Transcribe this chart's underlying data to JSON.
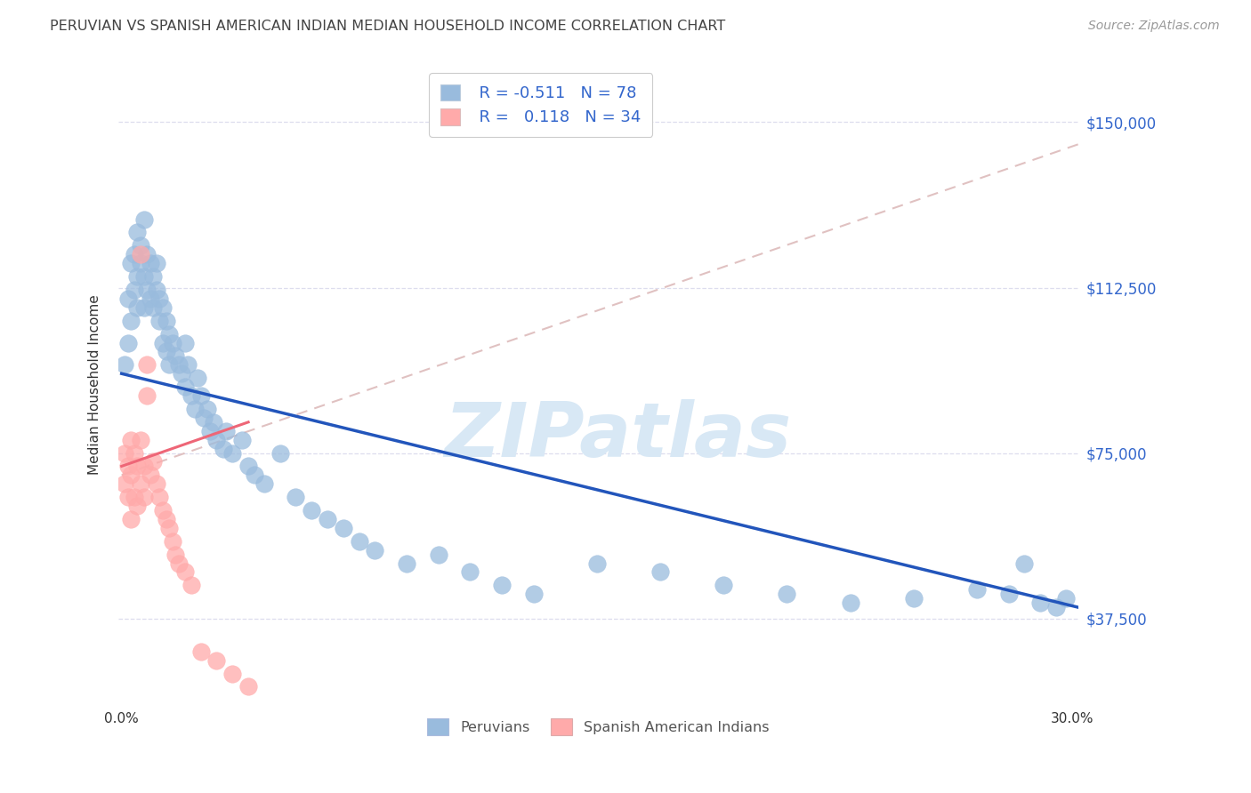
{
  "title": "PERUVIAN VS SPANISH AMERICAN INDIAN MEDIAN HOUSEHOLD INCOME CORRELATION CHART",
  "source": "Source: ZipAtlas.com",
  "ylabel": "Median Household Income",
  "ytick_labels": [
    "$37,500",
    "$75,000",
    "$112,500",
    "$150,000"
  ],
  "ytick_values": [
    37500,
    75000,
    112500,
    150000
  ],
  "ymin": 18000,
  "ymax": 163000,
  "xmin": -0.001,
  "xmax": 0.302,
  "legend_label_blue": "Peruvians",
  "legend_label_pink": "Spanish American Indians",
  "blue_color": "#99BBDD",
  "pink_color": "#FFAAAA",
  "trend_blue_color": "#2255BB",
  "trend_pink_solid_color": "#EE6677",
  "trend_pink_dash_color": "#DDBBBB",
  "watermark_text": "ZIPatlas",
  "watermark_color": "#D8E8F5",
  "title_color": "#444444",
  "source_color": "#999999",
  "axis_color": "#333333",
  "ytick_color": "#3366CC",
  "legend_text_color": "#3366CC",
  "grid_color": "#DDDDEE",
  "blue_x": [
    0.001,
    0.002,
    0.002,
    0.003,
    0.003,
    0.004,
    0.004,
    0.005,
    0.005,
    0.005,
    0.006,
    0.006,
    0.007,
    0.007,
    0.007,
    0.008,
    0.008,
    0.009,
    0.009,
    0.01,
    0.01,
    0.011,
    0.011,
    0.012,
    0.012,
    0.013,
    0.013,
    0.014,
    0.014,
    0.015,
    0.015,
    0.016,
    0.017,
    0.018,
    0.019,
    0.02,
    0.02,
    0.021,
    0.022,
    0.023,
    0.024,
    0.025,
    0.026,
    0.027,
    0.028,
    0.029,
    0.03,
    0.032,
    0.033,
    0.035,
    0.038,
    0.04,
    0.042,
    0.045,
    0.05,
    0.055,
    0.06,
    0.065,
    0.07,
    0.075,
    0.08,
    0.09,
    0.1,
    0.11,
    0.12,
    0.13,
    0.15,
    0.17,
    0.19,
    0.21,
    0.23,
    0.25,
    0.27,
    0.28,
    0.285,
    0.29,
    0.295,
    0.298
  ],
  "blue_y": [
    95000,
    100000,
    110000,
    105000,
    118000,
    112000,
    120000,
    108000,
    115000,
    125000,
    118000,
    122000,
    115000,
    108000,
    128000,
    112000,
    120000,
    118000,
    110000,
    115000,
    108000,
    112000,
    118000,
    110000,
    105000,
    108000,
    100000,
    105000,
    98000,
    102000,
    95000,
    100000,
    97000,
    95000,
    93000,
    100000,
    90000,
    95000,
    88000,
    85000,
    92000,
    88000,
    83000,
    85000,
    80000,
    82000,
    78000,
    76000,
    80000,
    75000,
    78000,
    72000,
    70000,
    68000,
    75000,
    65000,
    62000,
    60000,
    58000,
    55000,
    53000,
    50000,
    52000,
    48000,
    45000,
    43000,
    50000,
    48000,
    45000,
    43000,
    41000,
    42000,
    44000,
    43000,
    50000,
    41000,
    40000,
    42000
  ],
  "pink_x": [
    0.001,
    0.001,
    0.002,
    0.002,
    0.003,
    0.003,
    0.003,
    0.004,
    0.004,
    0.005,
    0.005,
    0.006,
    0.006,
    0.007,
    0.007,
    0.008,
    0.009,
    0.01,
    0.011,
    0.012,
    0.013,
    0.014,
    0.015,
    0.016,
    0.017,
    0.018,
    0.02,
    0.022,
    0.025,
    0.03,
    0.035,
    0.04,
    0.006,
    0.008
  ],
  "pink_y": [
    75000,
    68000,
    72000,
    65000,
    78000,
    70000,
    60000,
    75000,
    65000,
    72000,
    63000,
    78000,
    68000,
    72000,
    65000,
    95000,
    70000,
    73000,
    68000,
    65000,
    62000,
    60000,
    58000,
    55000,
    52000,
    50000,
    48000,
    45000,
    30000,
    28000,
    25000,
    22000,
    120000,
    88000
  ]
}
